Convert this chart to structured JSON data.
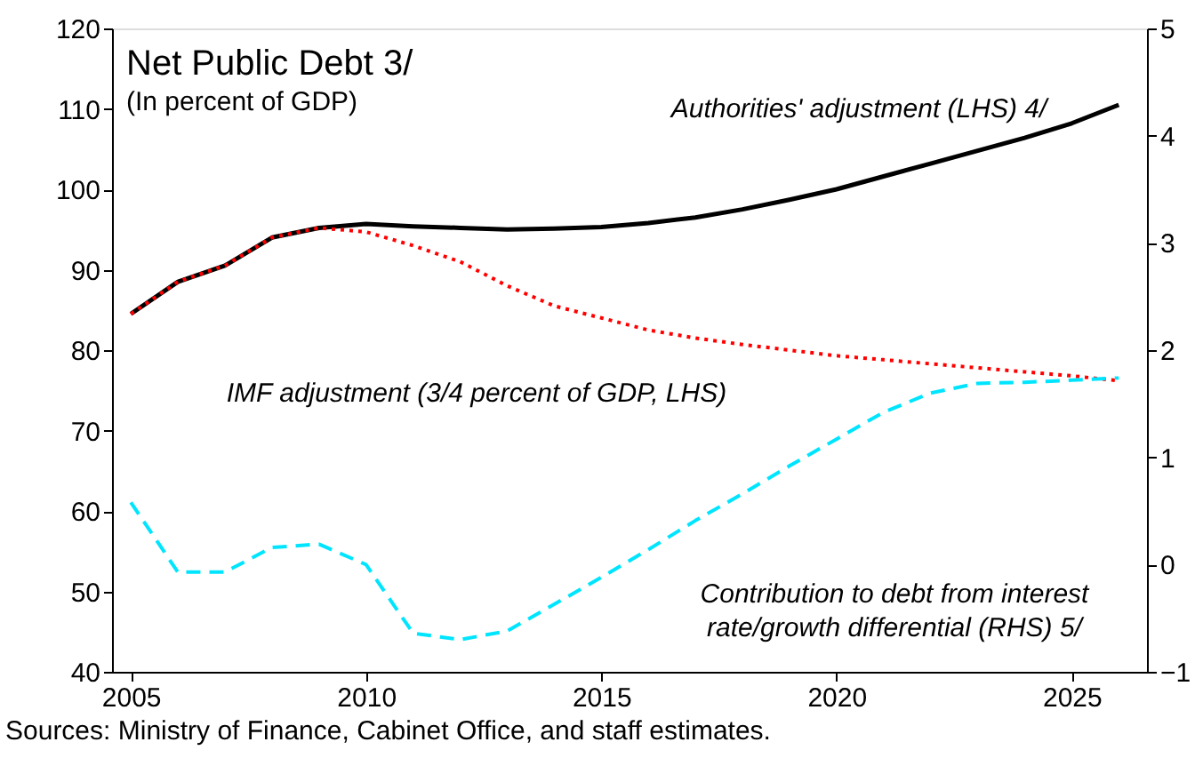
{
  "chart_data": {
    "type": "line",
    "title": "Net Public Debt 3/",
    "subtitle": "(In percent of GDP)",
    "x": [
      2005,
      2006,
      2007,
      2008,
      2009,
      2010,
      2011,
      2012,
      2013,
      2014,
      2015,
      2016,
      2017,
      2018,
      2019,
      2020,
      2021,
      2022,
      2023,
      2024,
      2025,
      2026
    ],
    "series": [
      {
        "name": "Authorities' adjustment (LHS) 4/",
        "color": "#000000",
        "line_style": "solid",
        "values": [
          84.5,
          88.5,
          90.5,
          94,
          95.2,
          95.7,
          95.4,
          95.2,
          95,
          95.1,
          95.3,
          95.8,
          96.5,
          97.5,
          98.7,
          100,
          101.6,
          103.2,
          104.8,
          106.4,
          108.2,
          110.5
        ]
      },
      {
        "name": "IMF adjustment (3/4 percent of GDP, LHS)",
        "color": "#ff0000",
        "line_style": "dotted",
        "values": [
          84.5,
          88.5,
          90.5,
          94,
          95.2,
          94.7,
          93,
          91,
          88,
          85.5,
          84,
          82.5,
          81.5,
          80.7,
          80,
          79.3,
          78.8,
          78.3,
          77.8,
          77.3,
          76.8,
          76.2
        ]
      },
      {
        "name": "Contribution to debt from interest rate/growth differential (RHS) 5/",
        "color": "#00e5ff",
        "line_style": "dashed",
        "axis": "y2",
        "values": [
          0.58,
          -0.07,
          -0.07,
          0.16,
          0.19,
          0.0,
          -0.64,
          -0.7,
          -0.62,
          -0.37,
          -0.12,
          0.14,
          0.41,
          0.66,
          0.92,
          1.17,
          1.42,
          1.6,
          1.69,
          1.7,
          1.72,
          1.74
        ]
      }
    ],
    "xlim": [
      2004.6,
      2026.6
    ],
    "xticks": [
      2005,
      2010,
      2015,
      2020,
      2025
    ],
    "ylim": [
      40,
      120
    ],
    "yticks": [
      40,
      50,
      60,
      70,
      80,
      90,
      100,
      110,
      120
    ],
    "y2lim": [
      -1,
      5
    ],
    "y2ticks": [
      -1,
      0,
      1,
      2,
      3,
      4,
      5
    ],
    "grid": false,
    "marker": "none",
    "annotations": [
      "Sources: Ministry of Finance, Cabinet Office, and staff estimates."
    ]
  }
}
